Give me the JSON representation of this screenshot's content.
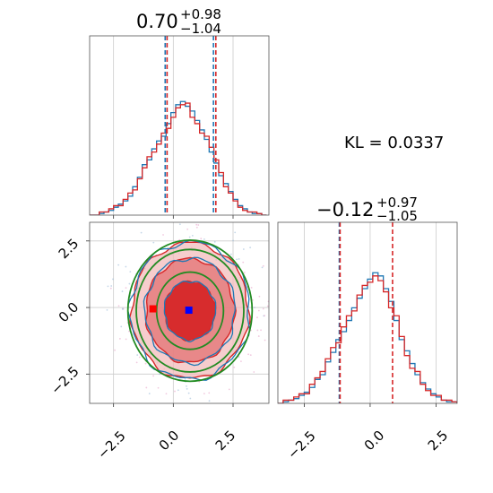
{
  "chart_data": {
    "type": "corner",
    "annotation": "KL = 0.0337",
    "colors": {
      "blue": "#1f77b4",
      "red": "#d62728",
      "green": "#228b22",
      "marker_blue": "#0000ff",
      "marker_red": "#ff0000"
    },
    "marginal_top": {
      "title": {
        "median": "0.70",
        "plus": "+0.98",
        "minus": "−1.04"
      },
      "xlim": [
        -3.5,
        4.0
      ],
      "ylim": [
        0,
        1
      ],
      "grid": true,
      "quantile_lines": {
        "blue": [
          -0.34,
          1.68
        ],
        "red": [
          -0.26,
          1.78
        ]
      },
      "bins": [
        -3.5,
        -3.3,
        -3.1,
        -2.9,
        -2.7,
        -2.5,
        -2.3,
        -2.1,
        -1.9,
        -1.7,
        -1.5,
        -1.3,
        -1.1,
        -0.9,
        -0.7,
        -0.5,
        -0.3,
        -0.1,
        0.1,
        0.3,
        0.5,
        0.7,
        0.9,
        1.1,
        1.3,
        1.5,
        1.7,
        1.9,
        2.1,
        2.3,
        2.5,
        2.7,
        2.9,
        3.1,
        3.3,
        3.5,
        3.7,
        3.9
      ],
      "counts_blue": [
        0,
        0,
        0.01,
        0.02,
        0.03,
        0.05,
        0.07,
        0.09,
        0.12,
        0.18,
        0.24,
        0.32,
        0.35,
        0.42,
        0.47,
        0.5,
        0.58,
        0.65,
        0.7,
        0.72,
        0.69,
        0.66,
        0.6,
        0.54,
        0.48,
        0.4,
        0.33,
        0.25,
        0.2,
        0.15,
        0.1,
        0.06,
        0.04,
        0.02,
        0.01,
        0.01,
        0
      ],
      "counts_red": [
        0,
        0,
        0.02,
        0.02,
        0.04,
        0.06,
        0.06,
        0.1,
        0.14,
        0.16,
        0.23,
        0.3,
        0.37,
        0.4,
        0.45,
        0.52,
        0.55,
        0.62,
        0.68,
        0.7,
        0.71,
        0.62,
        0.58,
        0.52,
        0.5,
        0.43,
        0.35,
        0.27,
        0.18,
        0.14,
        0.09,
        0.05,
        0.03,
        0.02,
        0.02,
        0.01,
        0
      ]
    },
    "marginal_right": {
      "title": {
        "median": "−0.12",
        "plus": "+0.97",
        "minus": "−1.05"
      },
      "xlim": [
        -3.5,
        3.3
      ],
      "ylim": [
        0,
        1
      ],
      "grid": true,
      "x_ticks": [
        "−2.5",
        "0.0",
        "2.5"
      ],
      "quantile_lines": {
        "blue": [
          -1.17
        ],
        "red": [
          -1.14,
          0.85
        ]
      },
      "bins": [
        -3.5,
        -3.3,
        -3.1,
        -2.9,
        -2.7,
        -2.5,
        -2.3,
        -2.1,
        -1.9,
        -1.7,
        -1.5,
        -1.3,
        -1.1,
        -0.9,
        -0.7,
        -0.5,
        -0.3,
        -0.1,
        0.1,
        0.3,
        0.5,
        0.7,
        0.9,
        1.1,
        1.3,
        1.5,
        1.7,
        1.9,
        2.1,
        2.3,
        2.5,
        2.7,
        2.9,
        3.1,
        3.3
      ],
      "counts_blue": [
        0,
        0.01,
        0.02,
        0.03,
        0.05,
        0.07,
        0.1,
        0.15,
        0.18,
        0.26,
        0.32,
        0.4,
        0.45,
        0.52,
        0.6,
        0.66,
        0.72,
        0.78,
        0.82,
        0.8,
        0.72,
        0.64,
        0.52,
        0.4,
        0.33,
        0.25,
        0.18,
        0.13,
        0.09,
        0.06,
        0.04,
        0.02,
        0.01,
        0.01
      ],
      "counts_red": [
        0,
        0.02,
        0.02,
        0.04,
        0.06,
        0.06,
        0.12,
        0.16,
        0.2,
        0.28,
        0.35,
        0.38,
        0.48,
        0.55,
        0.58,
        0.68,
        0.74,
        0.76,
        0.8,
        0.77,
        0.7,
        0.6,
        0.55,
        0.42,
        0.3,
        0.22,
        0.2,
        0.12,
        0.08,
        0.05,
        0.05,
        0.02,
        0.02,
        0.01
      ]
    },
    "joint": {
      "xlim": [
        -3.5,
        4.0
      ],
      "ylim": [
        -3.6,
        3.2
      ],
      "grid": true,
      "x_ticks": [
        "−2.5",
        "0.0",
        "2.5"
      ],
      "y_ticks": [
        "2.5",
        "0.0",
        "−2.5"
      ],
      "center": [
        0.7,
        -0.12
      ],
      "blue_contours": [
        {
          "rx": 1.05,
          "ry": 1.1,
          "fill": "#d62728",
          "opacity": 0.95
        },
        {
          "rx": 1.85,
          "ry": 1.95,
          "fill": "#e57b7c",
          "opacity": 0.85
        },
        {
          "rx": 2.45,
          "ry": 2.55,
          "fill": "#f2b8b8",
          "opacity": 0.7
        }
      ],
      "green_ellipses": [
        {
          "rx": 1.4,
          "ry": 1.45
        },
        {
          "rx": 2.25,
          "ry": 2.3
        },
        {
          "rx": 2.6,
          "ry": 2.65
        }
      ],
      "markers": [
        {
          "x": 0.65,
          "y": -0.1,
          "color": "#0000ff"
        },
        {
          "x": -0.85,
          "y": -0.05,
          "color": "#ff0000"
        }
      ]
    }
  }
}
